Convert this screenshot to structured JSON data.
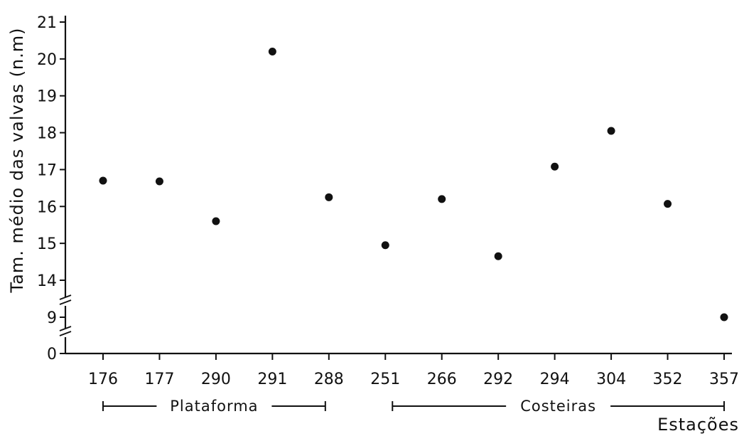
{
  "chart_data": {
    "type": "scatter",
    "title": "",
    "xlabel": "Estações",
    "ylabel": "Tam. médio das valvas (n.m)",
    "categories": [
      "176",
      "177",
      "290",
      "291",
      "288",
      "251",
      "266",
      "292",
      "294",
      "304",
      "352",
      "357"
    ],
    "values": [
      16.7,
      16.68,
      15.6,
      20.2,
      16.25,
      14.95,
      16.2,
      14.65,
      17.08,
      18.05,
      16.07,
      9.0
    ],
    "y_ticks": [
      "0",
      "9",
      "14",
      "15",
      "16",
      "17",
      "18",
      "19",
      "20",
      "21"
    ],
    "ylim": [
      14,
      21
    ],
    "y_axis_breaks": [
      "0-9",
      "9-14"
    ],
    "groups": [
      {
        "label": "Plataforma",
        "from": "176",
        "to": "288"
      },
      {
        "label": "Costeiras",
        "from": "251",
        "to": "357"
      }
    ],
    "grid": false,
    "legend": "none",
    "color": "#111111"
  }
}
